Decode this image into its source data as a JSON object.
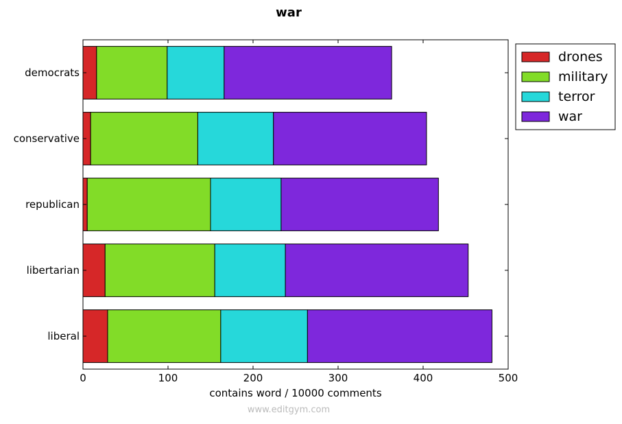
{
  "chart_data": {
    "type": "bar",
    "orientation": "horizontal",
    "stacked": true,
    "title": "war",
    "xlabel": "contains word / 10000 comments",
    "ylabel": "",
    "xlim": [
      0,
      500
    ],
    "xticks": [
      0,
      100,
      200,
      300,
      400,
      500
    ],
    "categories": [
      "democrats",
      "conservative",
      "republican",
      "libertarian",
      "liberal"
    ],
    "series": [
      {
        "name": "drones",
        "color": "#d62728",
        "values": [
          16,
          9,
          5,
          26,
          29
        ]
      },
      {
        "name": "military",
        "color": "#82dc28",
        "values": [
          83,
          126,
          145,
          129,
          133
        ]
      },
      {
        "name": "terror",
        "color": "#26d8da",
        "values": [
          67,
          89,
          83,
          83,
          102
        ]
      },
      {
        "name": "war",
        "color": "#7e28dc",
        "values": [
          197,
          180,
          185,
          215,
          217
        ]
      }
    ],
    "legend": "outside-top-right",
    "grid": false
  },
  "watermark": "www.editgym.com"
}
